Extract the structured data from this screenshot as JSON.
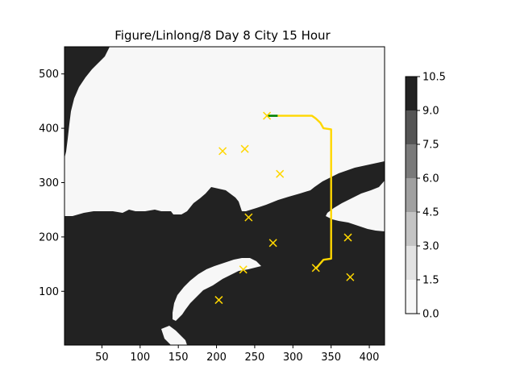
{
  "chart_data": {
    "type": "heatmap",
    "title": "Figure/Linlong/8 Day 8 City 15 Hour",
    "xlabel": "",
    "ylabel": "",
    "xlim": [
      1,
      420
    ],
    "ylim": [
      1,
      550
    ],
    "x_ticks": [
      50,
      100,
      150,
      200,
      250,
      300,
      350,
      400
    ],
    "y_ticks": [
      100,
      200,
      300,
      400,
      500
    ],
    "colorbar": {
      "levels": [
        0.0,
        1.5,
        3.0,
        4.5,
        6.0,
        7.5,
        9.0,
        10.5
      ],
      "tick_labels": [
        "0.0",
        "1.5",
        "3.0",
        "4.5",
        "6.0",
        "7.5",
        "9.0",
        "10.5"
      ],
      "colors": [
        "#f7f7f7",
        "#e2e2e2",
        "#c4c4c4",
        "#a0a0a0",
        "#7a7a7a",
        "#555555",
        "#222222"
      ]
    },
    "map_colors": {
      "low": "#f7f7f7",
      "high": "#222222"
    },
    "cities": {
      "marker": "x",
      "color": "#ffd700",
      "points": [
        {
          "x": 266,
          "y": 423
        },
        {
          "x": 208,
          "y": 358
        },
        {
          "x": 237,
          "y": 362
        },
        {
          "x": 283,
          "y": 316
        },
        {
          "x": 242,
          "y": 236
        },
        {
          "x": 274,
          "y": 189
        },
        {
          "x": 372,
          "y": 199
        },
        {
          "x": 235,
          "y": 140
        },
        {
          "x": 330,
          "y": 143
        },
        {
          "x": 375,
          "y": 126
        },
        {
          "x": 203,
          "y": 84
        }
      ]
    },
    "route": {
      "color": "#ffd700",
      "points": [
        [
          280,
          423
        ],
        [
          325,
          423
        ],
        [
          330,
          418
        ],
        [
          336,
          410
        ],
        [
          340,
          400
        ],
        [
          350,
          398
        ],
        [
          350,
          160
        ],
        [
          340,
          158
        ],
        [
          332,
          145
        ],
        [
          330,
          142
        ]
      ]
    },
    "route_head": {
      "color": "#008000",
      "points": [
        [
          266,
          423
        ],
        [
          280,
          423
        ]
      ]
    }
  }
}
